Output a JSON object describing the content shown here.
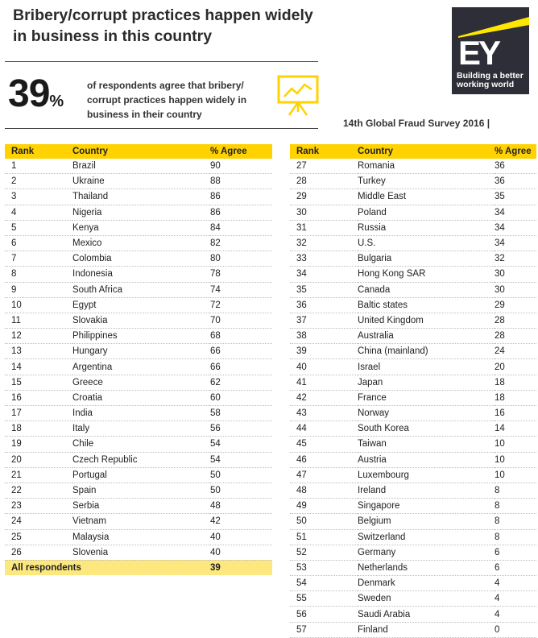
{
  "header": {
    "title_line1": "Bribery/corrupt practices happen widely",
    "title_line2": "in business in this country"
  },
  "logo": {
    "mark": "EY",
    "tagline1": "Building a better",
    "tagline2": "working world",
    "color_bg": "#2e2e38",
    "color_accent": "#ffe600"
  },
  "stat": {
    "number": "39",
    "suffix": "%",
    "line1": "of respondents agree that bribery/",
    "line2": "corrupt practices happen widely in",
    "line3": "business in their country",
    "icon": "presentation-board-chart-icon"
  },
  "survey_label": "14th Global Fraud Survey 2016 |",
  "colors": {
    "header_yellow": "#ffd200",
    "total_row": "#fde87f"
  },
  "table_headers": {
    "rank": "Rank",
    "country": "Country",
    "agree": "% Agree"
  },
  "left_rows": [
    {
      "rank": "1",
      "country": "Brazil",
      "agree": "90"
    },
    {
      "rank": "2",
      "country": "Ukraine",
      "agree": "88"
    },
    {
      "rank": "3",
      "country": "Thailand",
      "agree": "86"
    },
    {
      "rank": "4",
      "country": "Nigeria",
      "agree": "86"
    },
    {
      "rank": "5",
      "country": "Kenya",
      "agree": "84"
    },
    {
      "rank": "6",
      "country": "Mexico",
      "agree": "82"
    },
    {
      "rank": "7",
      "country": "Colombia",
      "agree": "80"
    },
    {
      "rank": "8",
      "country": "Indonesia",
      "agree": "78"
    },
    {
      "rank": "9",
      "country": "South Africa",
      "agree": "74"
    },
    {
      "rank": "10",
      "country": "Egypt",
      "agree": "72"
    },
    {
      "rank": "11",
      "country": "Slovakia",
      "agree": "70"
    },
    {
      "rank": "12",
      "country": "Philippines",
      "agree": "68"
    },
    {
      "rank": "13",
      "country": "Hungary",
      "agree": "66"
    },
    {
      "rank": "14",
      "country": "Argentina",
      "agree": "66"
    },
    {
      "rank": "15",
      "country": "Greece",
      "agree": "62"
    },
    {
      "rank": "16",
      "country": "Croatia",
      "agree": "60"
    },
    {
      "rank": "17",
      "country": "India",
      "agree": "58"
    },
    {
      "rank": "18",
      "country": "Italy",
      "agree": "56"
    },
    {
      "rank": "19",
      "country": "Chile",
      "agree": "54"
    },
    {
      "rank": "20",
      "country": "Czech Republic",
      "agree": "54"
    },
    {
      "rank": "21",
      "country": "Portugal",
      "agree": "50"
    },
    {
      "rank": "22",
      "country": "Spain",
      "agree": "50"
    },
    {
      "rank": "23",
      "country": "Serbia",
      "agree": "48"
    },
    {
      "rank": "24",
      "country": "Vietnam",
      "agree": "42"
    },
    {
      "rank": "25",
      "country": "Malaysia",
      "agree": "40"
    },
    {
      "rank": "26",
      "country": "Slovenia",
      "agree": "40"
    }
  ],
  "total_row": {
    "label": "All respondents",
    "agree": "39"
  },
  "right_rows": [
    {
      "rank": "27",
      "country": "Romania",
      "agree": "36"
    },
    {
      "rank": "28",
      "country": "Turkey",
      "agree": "36"
    },
    {
      "rank": "29",
      "country": "Middle East",
      "agree": "35"
    },
    {
      "rank": "30",
      "country": "Poland",
      "agree": "34"
    },
    {
      "rank": "31",
      "country": "Russia",
      "agree": "34"
    },
    {
      "rank": "32",
      "country": "U.S.",
      "agree": "34"
    },
    {
      "rank": "33",
      "country": "Bulgaria",
      "agree": "32"
    },
    {
      "rank": "34",
      "country": "Hong Kong SAR",
      "agree": "30"
    },
    {
      "rank": "35",
      "country": "Canada",
      "agree": "30"
    },
    {
      "rank": "36",
      "country": "Baltic states",
      "agree": "29"
    },
    {
      "rank": "37",
      "country": "United Kingdom",
      "agree": "28"
    },
    {
      "rank": "38",
      "country": "Australia",
      "agree": "28"
    },
    {
      "rank": "39",
      "country": "China (mainland)",
      "agree": "24"
    },
    {
      "rank": "40",
      "country": "Israel",
      "agree": "20"
    },
    {
      "rank": "41",
      "country": "Japan",
      "agree": "18"
    },
    {
      "rank": "42",
      "country": "France",
      "agree": "18"
    },
    {
      "rank": "43",
      "country": "Norway",
      "agree": "16"
    },
    {
      "rank": "44",
      "country": "South Korea",
      "agree": "14"
    },
    {
      "rank": "45",
      "country": "Taiwan",
      "agree": "10"
    },
    {
      "rank": "46",
      "country": "Austria",
      "agree": "10"
    },
    {
      "rank": "47",
      "country": "Luxembourg",
      "agree": "10"
    },
    {
      "rank": "48",
      "country": "Ireland",
      "agree": "8"
    },
    {
      "rank": "49",
      "country": "Singapore",
      "agree": "8"
    },
    {
      "rank": "50",
      "country": "Belgium",
      "agree": "8"
    },
    {
      "rank": "51",
      "country": "Switzerland",
      "agree": "8"
    },
    {
      "rank": "52",
      "country": "Germany",
      "agree": "6"
    },
    {
      "rank": "53",
      "country": "Netherlands",
      "agree": "6"
    },
    {
      "rank": "54",
      "country": "Denmark",
      "agree": "4"
    },
    {
      "rank": "55",
      "country": "Sweden",
      "agree": "4"
    },
    {
      "rank": "56",
      "country": "Saudi Arabia",
      "agree": "4"
    },
    {
      "rank": "57",
      "country": "Finland",
      "agree": "0"
    }
  ]
}
